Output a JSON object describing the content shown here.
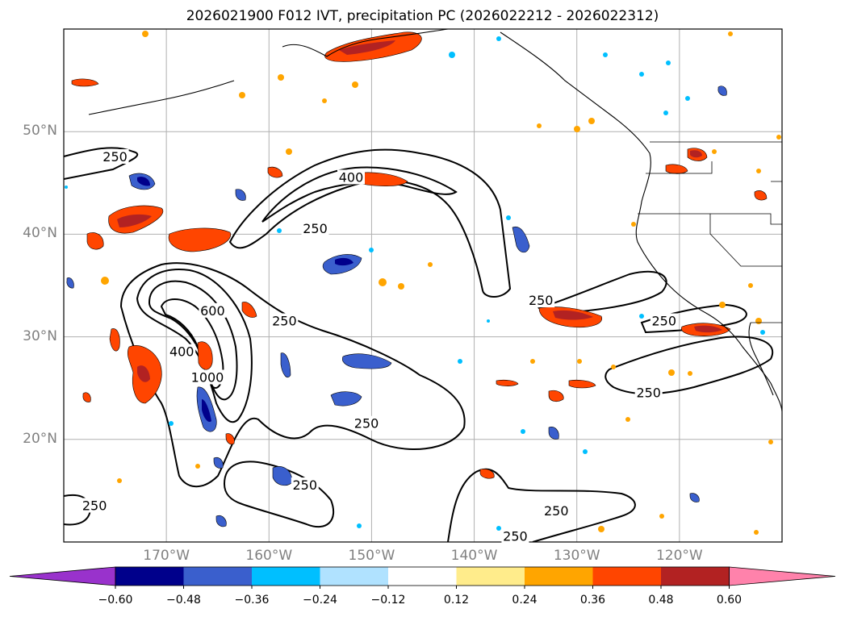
{
  "title": "2026021900 F012 IVT, precipitation PC (2026022212 - 2026022312)",
  "map": {
    "lon_range": [
      -180,
      -110
    ],
    "lat_range": [
      10,
      60
    ],
    "lat_ticks": [
      {
        "value": 50,
        "label": "50°N"
      },
      {
        "value": 40,
        "label": "40°N"
      },
      {
        "value": 30,
        "label": "30°N"
      },
      {
        "value": 20,
        "label": "20°N"
      }
    ],
    "lon_ticks": [
      {
        "value": -170,
        "label": "170°W"
      },
      {
        "value": -160,
        "label": "160°W"
      },
      {
        "value": -150,
        "label": "150°W"
      },
      {
        "value": -140,
        "label": "140°W"
      },
      {
        "value": -130,
        "label": "130°W"
      },
      {
        "value": -120,
        "label": "120°W"
      }
    ],
    "contour_labels": [
      {
        "text": "250",
        "lon": -175,
        "lat": 47.5
      },
      {
        "text": "400",
        "lon": -152,
        "lat": 45.5
      },
      {
        "text": "250",
        "lon": -155.5,
        "lat": 40.5
      },
      {
        "text": "600",
        "lon": -165.5,
        "lat": 32.5
      },
      {
        "text": "250",
        "lon": -158.5,
        "lat": 31.5
      },
      {
        "text": "400",
        "lon": -168.5,
        "lat": 28.5
      },
      {
        "text": "1000",
        "lon": -166,
        "lat": 26
      },
      {
        "text": "250",
        "lon": -150.5,
        "lat": 21.5
      },
      {
        "text": "250",
        "lon": -156.5,
        "lat": 15.5
      },
      {
        "text": "250",
        "lon": -177,
        "lat": 13.5
      },
      {
        "text": "250",
        "lon": -133.5,
        "lat": 33.5
      },
      {
        "text": "250",
        "lon": -121.5,
        "lat": 31.5
      },
      {
        "text": "250",
        "lon": -123,
        "lat": 24.5
      },
      {
        "text": "250",
        "lon": -132,
        "lat": 13
      },
      {
        "text": "250",
        "lon": -136,
        "lat": 10.5
      }
    ]
  },
  "colorbar": {
    "colors": [
      "#9932cc",
      "#00008b",
      "#3a5fcd",
      "#00bfff",
      "#b0e2ff",
      "#ffffff",
      "#ffec8b",
      "#ffa500",
      "#ff4500",
      "#b22222",
      "#ff82ab"
    ],
    "tick_labels": [
      "−0.60",
      "−0.48",
      "−0.36",
      "−0.24",
      "−0.12",
      "0.12",
      "0.24",
      "0.36",
      "0.48",
      "0.60"
    ]
  }
}
